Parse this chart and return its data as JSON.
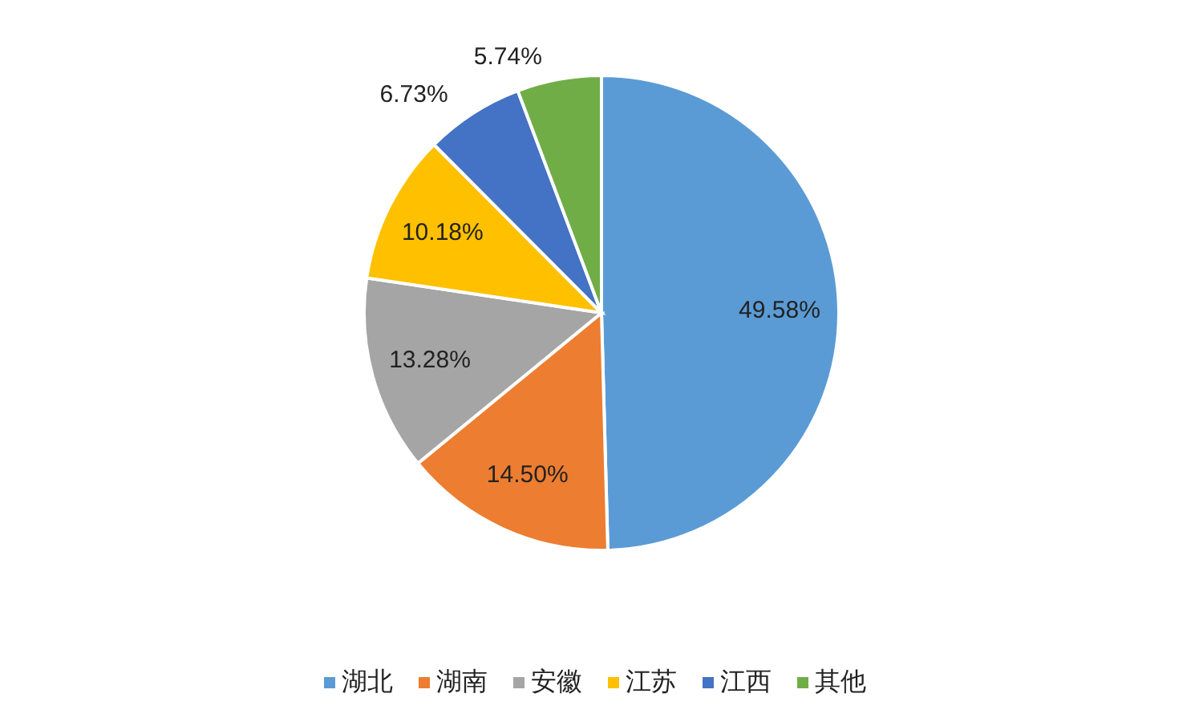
{
  "chart_data": {
    "type": "pie",
    "categories": [
      "湖北",
      "湖南",
      "安徽",
      "江苏",
      "江西",
      "其他"
    ],
    "values": [
      49.58,
      14.5,
      13.28,
      10.18,
      6.73,
      5.74
    ],
    "colors": [
      "#5b9bd5",
      "#ed7d31",
      "#a5a5a5",
      "#ffc000",
      "#4472c4",
      "#70ad47"
    ],
    "value_labels": [
      "49.58%",
      "14.50%",
      "13.28%",
      "10.18%",
      "6.73%",
      "5.74%"
    ],
    "legend": "bottom"
  }
}
